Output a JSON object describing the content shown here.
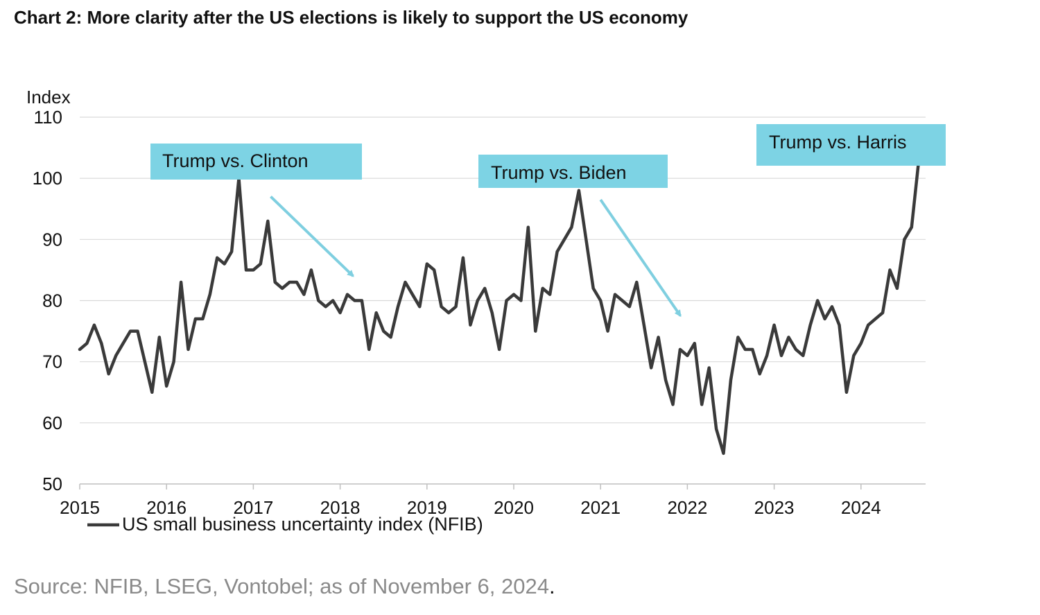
{
  "title": "Chart 2: More clarity after the US elections is likely to support the US economy",
  "source": "Source: NFIB, LSEG, Vontobel; as of November 6, 2024",
  "source_end": ".",
  "colors": {
    "line": "#3a3a3a",
    "annotation_fill": "#7dd3e4",
    "arrow": "#7fcfe0",
    "grid": "#d9d9d9",
    "axis": "#bfbfbf"
  },
  "chart_data": {
    "type": "line",
    "title": "Chart 2: More clarity after the US elections is likely to support the US economy",
    "ylabel": "Index",
    "xlabel": "",
    "ylim": [
      50,
      110
    ],
    "xlim": [
      2015.0,
      2024.75
    ],
    "yticks": [
      50,
      60,
      70,
      80,
      90,
      100,
      110
    ],
    "xticks": [
      "2015",
      "2016",
      "2017",
      "2018",
      "2019",
      "2020",
      "2021",
      "2022",
      "2023",
      "2024"
    ],
    "grid": true,
    "legend": "bottom-left",
    "series": [
      {
        "name": "US small business uncertainty index (NFIB)",
        "x_start": 2015.0,
        "step": 0.08333,
        "values": [
          72,
          73,
          76,
          73,
          68,
          71,
          73,
          75,
          75,
          70,
          65,
          74,
          66,
          70,
          83,
          72,
          77,
          77,
          81,
          87,
          86,
          88,
          100,
          85,
          85,
          86,
          93,
          83,
          82,
          83,
          83,
          81,
          85,
          80,
          79,
          80,
          78,
          81,
          80,
          80,
          72,
          78,
          75,
          74,
          79,
          83,
          81,
          79,
          86,
          85,
          79,
          78,
          79,
          87,
          76,
          80,
          82,
          78,
          72,
          80,
          81,
          80,
          92,
          75,
          82,
          81,
          88,
          90,
          92,
          98,
          90,
          82,
          80,
          75,
          81,
          80,
          79,
          83,
          76,
          69,
          74,
          67,
          63,
          72,
          71,
          73,
          63,
          69,
          59,
          55,
          67,
          74,
          72,
          72,
          68,
          71,
          76,
          71,
          74,
          72,
          71,
          76,
          80,
          77,
          79,
          76,
          65,
          71,
          73,
          76,
          77,
          78,
          85,
          82,
          90,
          92,
          103
        ]
      }
    ],
    "annotations": [
      {
        "text": "Trump vs. Clinton",
        "arrow_from": [
          2017.2,
          97
        ],
        "arrow_to": [
          2018.15,
          84
        ]
      },
      {
        "text": "Trump vs. Biden",
        "arrow_from": [
          2021.0,
          96.5
        ],
        "arrow_to": [
          2021.92,
          77.5
        ]
      },
      {
        "text": "Trump vs. Harris"
      }
    ]
  }
}
